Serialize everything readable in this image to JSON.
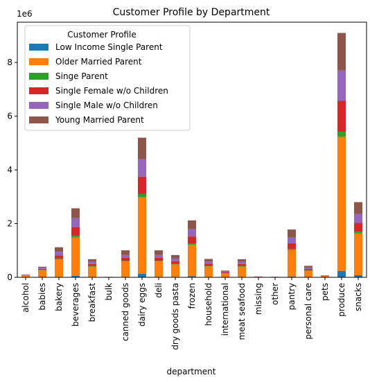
{
  "chart_data": {
    "type": "bar",
    "stacked": true,
    "title": "Customer Profile by Department",
    "xlabel": "department",
    "ylabel": "",
    "y_offset_label": "1e6",
    "y_unit": 1000000,
    "ylim": [
      0,
      9.5
    ],
    "yticks": [
      0,
      2,
      4,
      6,
      8
    ],
    "grid": false,
    "legend": {
      "title": "Customer Profile",
      "placement": "top-left"
    },
    "categories": [
      "alcohol",
      "babies",
      "bakery",
      "beverages",
      "breakfast",
      "bulk",
      "canned goods",
      "dairy eggs",
      "deli",
      "dry goods pasta",
      "frozen",
      "household",
      "international",
      "meat seafood",
      "missing",
      "other",
      "pantry",
      "personal care",
      "pets",
      "produce",
      "snacks"
    ],
    "series": [
      {
        "name": "Low Income Single Parent",
        "color": "#1f77b4",
        "values": [
          0.003,
          0.004,
          0.02,
          0.06,
          0.015,
          0.001,
          0.02,
          0.13,
          0.02,
          0.02,
          0.04,
          0.015,
          0.005,
          0.015,
          0.001,
          0.0005,
          0.03,
          0.008,
          0.001,
          0.24,
          0.08
        ]
      },
      {
        "name": "Older Married Parent",
        "color": "#ff7f0e",
        "values": [
          0.08,
          0.26,
          0.65,
          1.42,
          0.38,
          0.01,
          0.57,
          2.85,
          0.57,
          0.46,
          1.17,
          0.39,
          0.14,
          0.38,
          0.015,
          0.01,
          0.99,
          0.24,
          0.04,
          5.0,
          1.55
        ]
      },
      {
        "name": "Singe Parent",
        "color": "#2ca02c",
        "values": [
          0.004,
          0.01,
          0.03,
          0.06,
          0.02,
          0.001,
          0.025,
          0.12,
          0.025,
          0.02,
          0.05,
          0.02,
          0.006,
          0.02,
          0.001,
          0.001,
          0.04,
          0.01,
          0.002,
          0.18,
          0.07
        ]
      },
      {
        "name": "Single Female w/o Children",
        "color": "#d62728",
        "values": [
          0.01,
          0.04,
          0.12,
          0.33,
          0.08,
          0.002,
          0.11,
          0.65,
          0.11,
          0.1,
          0.26,
          0.08,
          0.03,
          0.08,
          0.005,
          0.003,
          0.21,
          0.05,
          0.01,
          1.15,
          0.33
        ]
      },
      {
        "name": "Single Male w/o Children",
        "color": "#9467bd",
        "values": [
          0.01,
          0.04,
          0.13,
          0.33,
          0.08,
          0.002,
          0.11,
          0.65,
          0.11,
          0.1,
          0.27,
          0.08,
          0.03,
          0.08,
          0.005,
          0.003,
          0.21,
          0.05,
          0.01,
          1.13,
          0.33
        ]
      },
      {
        "name": "Young Married Parent",
        "color": "#8c564b",
        "values": [
          0.003,
          0.04,
          0.17,
          0.37,
          0.1,
          0.002,
          0.17,
          0.8,
          0.17,
          0.13,
          0.33,
          0.1,
          0.04,
          0.1,
          0.005,
          0.003,
          0.3,
          0.07,
          0.01,
          1.4,
          0.44
        ]
      }
    ]
  }
}
